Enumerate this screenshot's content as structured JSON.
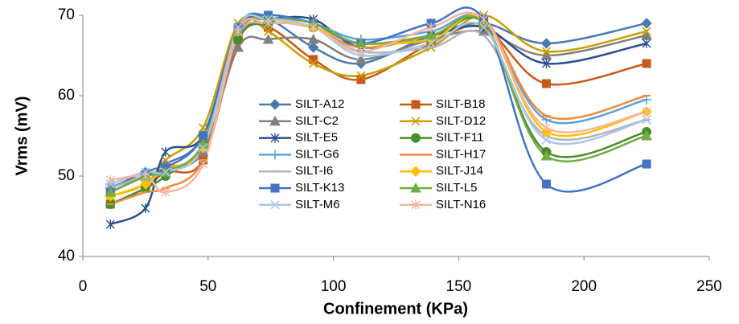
{
  "chart_data": {
    "type": "line",
    "x_label": "Confinement (KPa)",
    "y_label": "Vrms (mV)",
    "x": [
      11,
      25,
      33,
      48,
      62,
      74,
      92,
      111,
      139,
      160,
      185,
      225
    ],
    "xlim": [
      0,
      250
    ],
    "xticks": [
      0,
      50,
      100,
      150,
      200,
      250
    ],
    "ylim": [
      40,
      70
    ],
    "yticks": [
      40,
      50,
      60,
      70
    ],
    "smooth": true,
    "series": [
      {
        "name": "SILT-A12",
        "color": "#4a7ab0",
        "marker": "diamond",
        "values": [
          48.5,
          50.5,
          51.5,
          55,
          68.5,
          69.5,
          66,
          64,
          67.5,
          69,
          66.5,
          69
        ]
      },
      {
        "name": "SILT-B18",
        "color": "#c45a1c",
        "marker": "square",
        "values": [
          46.5,
          48.5,
          50.5,
          52,
          67,
          68.5,
          64.5,
          62,
          66.5,
          68.5,
          61.5,
          64
        ]
      },
      {
        "name": "SILT-C2",
        "color": "#808080",
        "marker": "triangle",
        "values": [
          48,
          50,
          51,
          53,
          66,
          67,
          67,
          64.5,
          67,
          68,
          65,
          67.5
        ]
      },
      {
        "name": "SILT-D12",
        "color": "#c9a000",
        "marker": "x",
        "values": [
          47.5,
          49,
          52,
          56,
          69,
          68,
          64,
          62.5,
          66,
          70,
          65.5,
          68
        ]
      },
      {
        "name": "SILT-E5",
        "color": "#2a4f8f",
        "marker": "star",
        "values": [
          44,
          46,
          53,
          55,
          68.5,
          69.5,
          69.5,
          66,
          67.5,
          68.5,
          64,
          66.5
        ]
      },
      {
        "name": "SILT-F11",
        "color": "#4c8c2c",
        "marker": "circle",
        "values": [
          46.5,
          48.5,
          50,
          54,
          67,
          69,
          68.5,
          66.5,
          67,
          69,
          53,
          55.5
        ]
      },
      {
        "name": "SILT-G6",
        "color": "#5ea2d8",
        "marker": "plus",
        "values": [
          49,
          50.5,
          50.5,
          54,
          68.5,
          70,
          69,
          67,
          68,
          69.5,
          57,
          59.5
        ]
      },
      {
        "name": "SILT-H17",
        "color": "#f08a3c",
        "marker": "dash",
        "values": [
          46.5,
          48,
          48.5,
          52,
          67.5,
          69.5,
          68.5,
          66,
          67.5,
          69.5,
          57.5,
          60
        ]
      },
      {
        "name": "SILT-I6",
        "color": "#b4b4b4",
        "marker": "dash",
        "values": [
          48.5,
          50,
          50.5,
          54,
          67.5,
          69,
          68.5,
          65.5,
          66,
          67.5,
          55,
          57
        ]
      },
      {
        "name": "SILT-J14",
        "color": "#ffc000",
        "marker": "diamond",
        "values": [
          47.5,
          49,
          51,
          53.5,
          68.5,
          69.5,
          68.5,
          66.5,
          67,
          69.5,
          55.5,
          58
        ]
      },
      {
        "name": "SILT-K13",
        "color": "#4472c4",
        "marker": "square",
        "values": [
          48,
          50,
          51,
          55,
          68.5,
          70,
          69,
          66.5,
          69,
          69.5,
          49,
          51.5
        ]
      },
      {
        "name": "SILT-L5",
        "color": "#70ad47",
        "marker": "triangle",
        "values": [
          48,
          50,
          50.5,
          54,
          68,
          69.5,
          69,
          66.5,
          67.5,
          69,
          52.5,
          55
        ]
      },
      {
        "name": "SILT-M6",
        "color": "#a9c6e8",
        "marker": "x",
        "values": [
          49,
          50.5,
          50.5,
          53.5,
          68.5,
          69.5,
          68.5,
          65,
          66.5,
          68.5,
          54.5,
          57
        ]
      },
      {
        "name": "SILT-N16",
        "color": "#f4b6a0",
        "marker": "star",
        "values": [
          49.5,
          50,
          48,
          51.5,
          68,
          69,
          68.5,
          65.5,
          68.5,
          69.5,
          56,
          58
        ]
      }
    ]
  }
}
